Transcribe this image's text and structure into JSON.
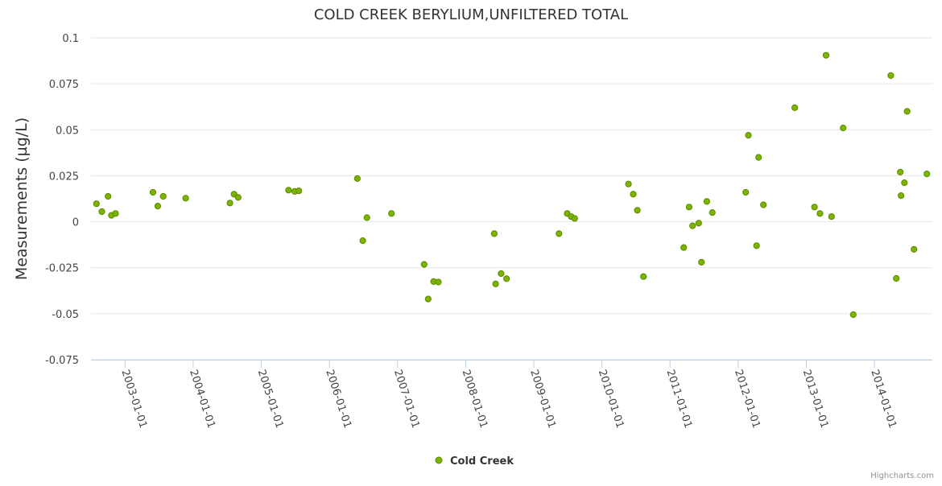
{
  "chart_data": {
    "type": "scatter",
    "title": "COLD CREEK BERYLIUM,UNFILTERED TOTAL",
    "ylabel": "Measurements (µg/L)",
    "xlabel": "",
    "ylim": [
      -0.075,
      0.1
    ],
    "y_ticks": [
      "0.1",
      "0.075",
      "0.05",
      "0.025",
      "0",
      "-0.025",
      "-0.05",
      "-0.075"
    ],
    "y_tick_values": [
      0.1,
      0.075,
      0.05,
      0.025,
      0,
      -0.025,
      -0.05,
      -0.075
    ],
    "xlim": [
      2002.5,
      2014.85
    ],
    "x_ticks": [
      "2003-01-01",
      "2004-01-01",
      "2005-01-01",
      "2006-01-01",
      "2007-01-01",
      "2008-01-01",
      "2009-01-01",
      "2010-01-01",
      "2011-01-01",
      "2012-01-01",
      "2013-01-01",
      "2014-01-01"
    ],
    "x_tick_values": [
      2003,
      2004,
      2005,
      2006,
      2007,
      2008,
      2009,
      2010,
      2011,
      2012,
      2013,
      2014
    ],
    "legend": "bottom-center",
    "grid": true,
    "series": [
      {
        "name": "Cold Creek",
        "color": "#7cb400",
        "points": [
          {
            "x": 2002.58,
            "y": 0.0098
          },
          {
            "x": 2002.66,
            "y": 0.0055
          },
          {
            "x": 2002.75,
            "y": 0.0138
          },
          {
            "x": 2002.8,
            "y": 0.0035
          },
          {
            "x": 2002.86,
            "y": 0.0045
          },
          {
            "x": 2003.41,
            "y": 0.016
          },
          {
            "x": 2003.48,
            "y": 0.0085
          },
          {
            "x": 2003.56,
            "y": 0.0138
          },
          {
            "x": 2003.89,
            "y": 0.0128
          },
          {
            "x": 2004.54,
            "y": 0.0102
          },
          {
            "x": 2004.6,
            "y": 0.015
          },
          {
            "x": 2004.66,
            "y": 0.0132
          },
          {
            "x": 2005.4,
            "y": 0.0172
          },
          {
            "x": 2005.49,
            "y": 0.0165
          },
          {
            "x": 2005.55,
            "y": 0.0168
          },
          {
            "x": 2006.41,
            "y": 0.0235
          },
          {
            "x": 2006.49,
            "y": -0.0103
          },
          {
            "x": 2006.55,
            "y": 0.0022
          },
          {
            "x": 2006.91,
            "y": 0.0045
          },
          {
            "x": 2007.39,
            "y": -0.0232
          },
          {
            "x": 2007.45,
            "y": -0.042
          },
          {
            "x": 2007.53,
            "y": -0.0325
          },
          {
            "x": 2007.6,
            "y": -0.0328
          },
          {
            "x": 2008.42,
            "y": -0.0065
          },
          {
            "x": 2008.44,
            "y": -0.0338
          },
          {
            "x": 2008.52,
            "y": -0.0282
          },
          {
            "x": 2008.6,
            "y": -0.031
          },
          {
            "x": 2009.37,
            "y": -0.0065
          },
          {
            "x": 2009.49,
            "y": 0.0045
          },
          {
            "x": 2009.55,
            "y": 0.0028
          },
          {
            "x": 2009.6,
            "y": 0.0018
          },
          {
            "x": 2010.39,
            "y": 0.0205
          },
          {
            "x": 2010.46,
            "y": 0.015
          },
          {
            "x": 2010.52,
            "y": 0.0062
          },
          {
            "x": 2010.61,
            "y": -0.0298
          },
          {
            "x": 2011.2,
            "y": -0.014
          },
          {
            "x": 2011.28,
            "y": 0.008
          },
          {
            "x": 2011.33,
            "y": -0.0022
          },
          {
            "x": 2011.42,
            "y": -0.0008
          },
          {
            "x": 2011.46,
            "y": -0.022
          },
          {
            "x": 2011.54,
            "y": 0.011
          },
          {
            "x": 2011.62,
            "y": 0.005
          },
          {
            "x": 2012.11,
            "y": 0.016
          },
          {
            "x": 2012.15,
            "y": 0.047
          },
          {
            "x": 2012.27,
            "y": -0.013
          },
          {
            "x": 2012.3,
            "y": 0.035
          },
          {
            "x": 2012.37,
            "y": 0.0092
          },
          {
            "x": 2012.83,
            "y": 0.062
          },
          {
            "x": 2013.12,
            "y": 0.008
          },
          {
            "x": 2013.2,
            "y": 0.0045
          },
          {
            "x": 2013.29,
            "y": 0.0905
          },
          {
            "x": 2013.37,
            "y": 0.0028
          },
          {
            "x": 2013.54,
            "y": 0.051
          },
          {
            "x": 2013.69,
            "y": -0.0505
          },
          {
            "x": 2014.24,
            "y": 0.0795
          },
          {
            "x": 2014.32,
            "y": -0.0308
          },
          {
            "x": 2014.38,
            "y": 0.027
          },
          {
            "x": 2014.39,
            "y": 0.0142
          },
          {
            "x": 2014.44,
            "y": 0.0212
          },
          {
            "x": 2014.48,
            "y": 0.06
          },
          {
            "x": 2014.58,
            "y": -0.015
          },
          {
            "x": 2014.77,
            "y": 0.026
          }
        ]
      }
    ]
  },
  "legend": {
    "label": "Cold Creek"
  },
  "credits": "Highcharts.com"
}
